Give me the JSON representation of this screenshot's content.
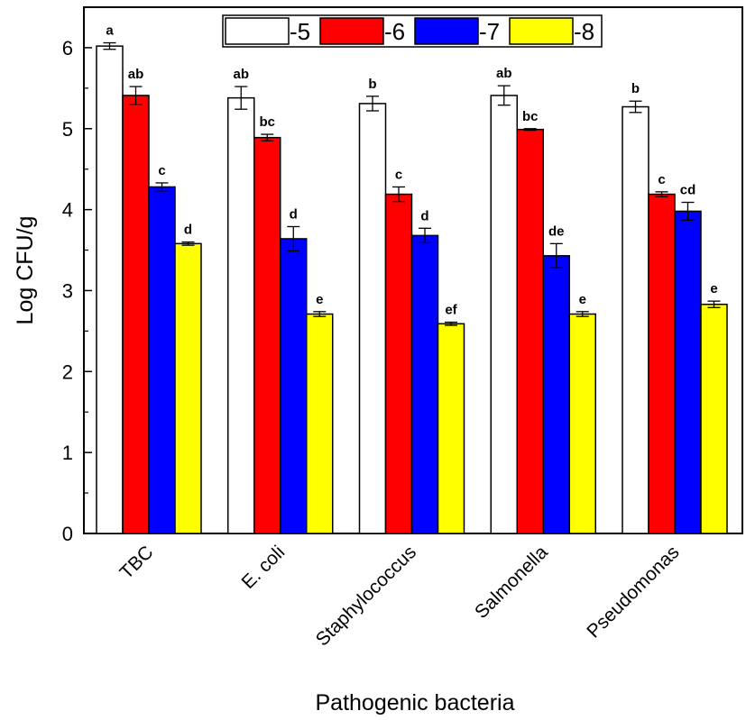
{
  "chart_data": {
    "type": "bar",
    "title": "",
    "xlabel": "Pathogenic bacteria",
    "ylabel": "Log CFU/g",
    "ylim": [
      0,
      6.5
    ],
    "yticks": [
      0,
      1,
      2,
      3,
      4,
      5,
      6
    ],
    "categories": [
      "TBC",
      "E. coli",
      "Staphylococcus",
      "Salmonella",
      "Pseudomonas"
    ],
    "legend_position": "top",
    "series": [
      {
        "name": "-5",
        "color": "#ffffff",
        "values": [
          6.02,
          5.38,
          5.31,
          5.41,
          5.27
        ],
        "errors": [
          0.04,
          0.14,
          0.09,
          0.12,
          0.07
        ],
        "letters": [
          "a",
          "ab",
          "b",
          "ab",
          "b"
        ]
      },
      {
        "name": "-6",
        "color": "#ff0000",
        "values": [
          5.41,
          4.89,
          4.19,
          4.99,
          4.19
        ],
        "errors": [
          0.11,
          0.04,
          0.09,
          0.01,
          0.03
        ],
        "letters": [
          "ab",
          "bc",
          "c",
          "bc",
          "c"
        ]
      },
      {
        "name": "-7",
        "color": "#0000ff",
        "values": [
          4.28,
          3.64,
          3.68,
          3.43,
          3.98
        ],
        "errors": [
          0.05,
          0.15,
          0.09,
          0.15,
          0.11
        ],
        "letters": [
          "c",
          "d",
          "d",
          "de",
          "cd"
        ]
      },
      {
        "name": "-8",
        "color": "#ffff00",
        "values": [
          3.58,
          2.71,
          2.59,
          2.71,
          2.83
        ],
        "errors": [
          0.02,
          0.03,
          0.02,
          0.03,
          0.04
        ],
        "letters": [
          "d",
          "e",
          "ef",
          "e",
          "e"
        ]
      }
    ]
  }
}
